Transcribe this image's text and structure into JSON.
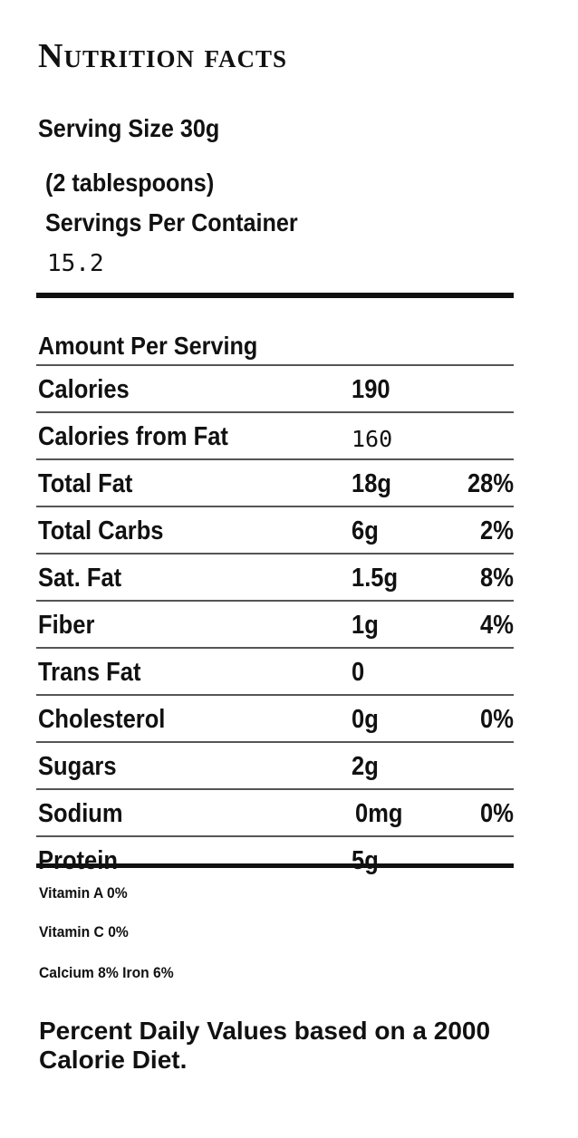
{
  "label": {
    "title": "Nutrition facts",
    "serving_size": "Serving Size 30g",
    "serving_tbsp": "(2 tablespoons)",
    "servings_label": "Servings Per Container",
    "servings_value": "15.2",
    "amount_per_serving": "Amount Per Serving"
  },
  "nutrients": [
    {
      "name": "Calories",
      "amount": "190",
      "dv": ""
    },
    {
      "name": "Calories from Fat",
      "amount": "160",
      "dv": ""
    },
    {
      "name": "Total Fat",
      "amount": "18g",
      "dv": "28%"
    },
    {
      "name": "Total Carbs",
      "amount": "6g",
      "dv": "2%"
    },
    {
      "name": "Sat. Fat",
      "amount": "1.5g",
      "dv": "8%"
    },
    {
      "name": "Fiber",
      "amount": "1g",
      "dv": "4%"
    },
    {
      "name": "Trans Fat",
      "amount": "0",
      "dv": ""
    },
    {
      "name": "Cholesterol",
      "amount": "0g",
      "dv": "0%"
    },
    {
      "name": "Sugars",
      "amount": "2g",
      "dv": ""
    },
    {
      "name": "Sodium",
      "amount": "0mg",
      "dv": "0%"
    },
    {
      "name": "Protein",
      "amount": "5g",
      "dv": ""
    }
  ],
  "vitamins": {
    "vitamin_a": "Vitamin A 0%",
    "vitamin_c": "Vitamin C 0%",
    "calcium_iron": "Calcium 8% Iron 6%"
  },
  "footnote": "Percent Daily Values based on a 2000 Calorie Diet."
}
